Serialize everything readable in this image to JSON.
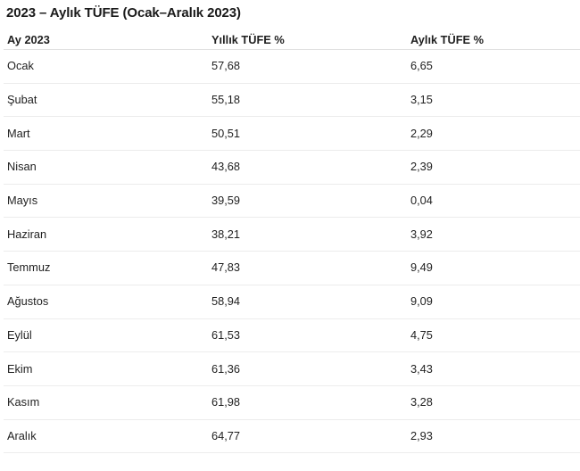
{
  "page": {
    "title": "2023 – Aylık TÜFE (Ocak–Aralık 2023)"
  },
  "table": {
    "columns": [
      "Ay 2023",
      "Yıllık TÜFE %",
      "Aylık TÜFE %"
    ],
    "rows": [
      {
        "month": "Ocak",
        "annual": "57,68",
        "monthly": "6,65"
      },
      {
        "month": "Şubat",
        "annual": "55,18",
        "monthly": "3,15"
      },
      {
        "month": "Mart",
        "annual": "50,51",
        "monthly": "2,29"
      },
      {
        "month": "Nisan",
        "annual": "43,68",
        "monthly": "2,39"
      },
      {
        "month": "Mayıs",
        "annual": "39,59",
        "monthly": "0,04"
      },
      {
        "month": "Haziran",
        "annual": "38,21",
        "monthly": "3,92"
      },
      {
        "month": "Temmuz",
        "annual": "47,83",
        "monthly": "9,49"
      },
      {
        "month": "Ağustos",
        "annual": "58,94",
        "monthly": "9,09"
      },
      {
        "month": "Eylül",
        "annual": "61,53",
        "monthly": "4,75"
      },
      {
        "month": "Ekim",
        "annual": "61,36",
        "monthly": "3,43"
      },
      {
        "month": "Kasım",
        "annual": "61,98",
        "monthly": "3,28"
      },
      {
        "month": "Aralık",
        "annual": "64,77",
        "monthly": "2,93"
      }
    ]
  },
  "colors": {
    "text": "#1f1f1f",
    "header_divider": "#e1e1e1",
    "row_divider": "#ececec",
    "background": "#ffffff"
  }
}
